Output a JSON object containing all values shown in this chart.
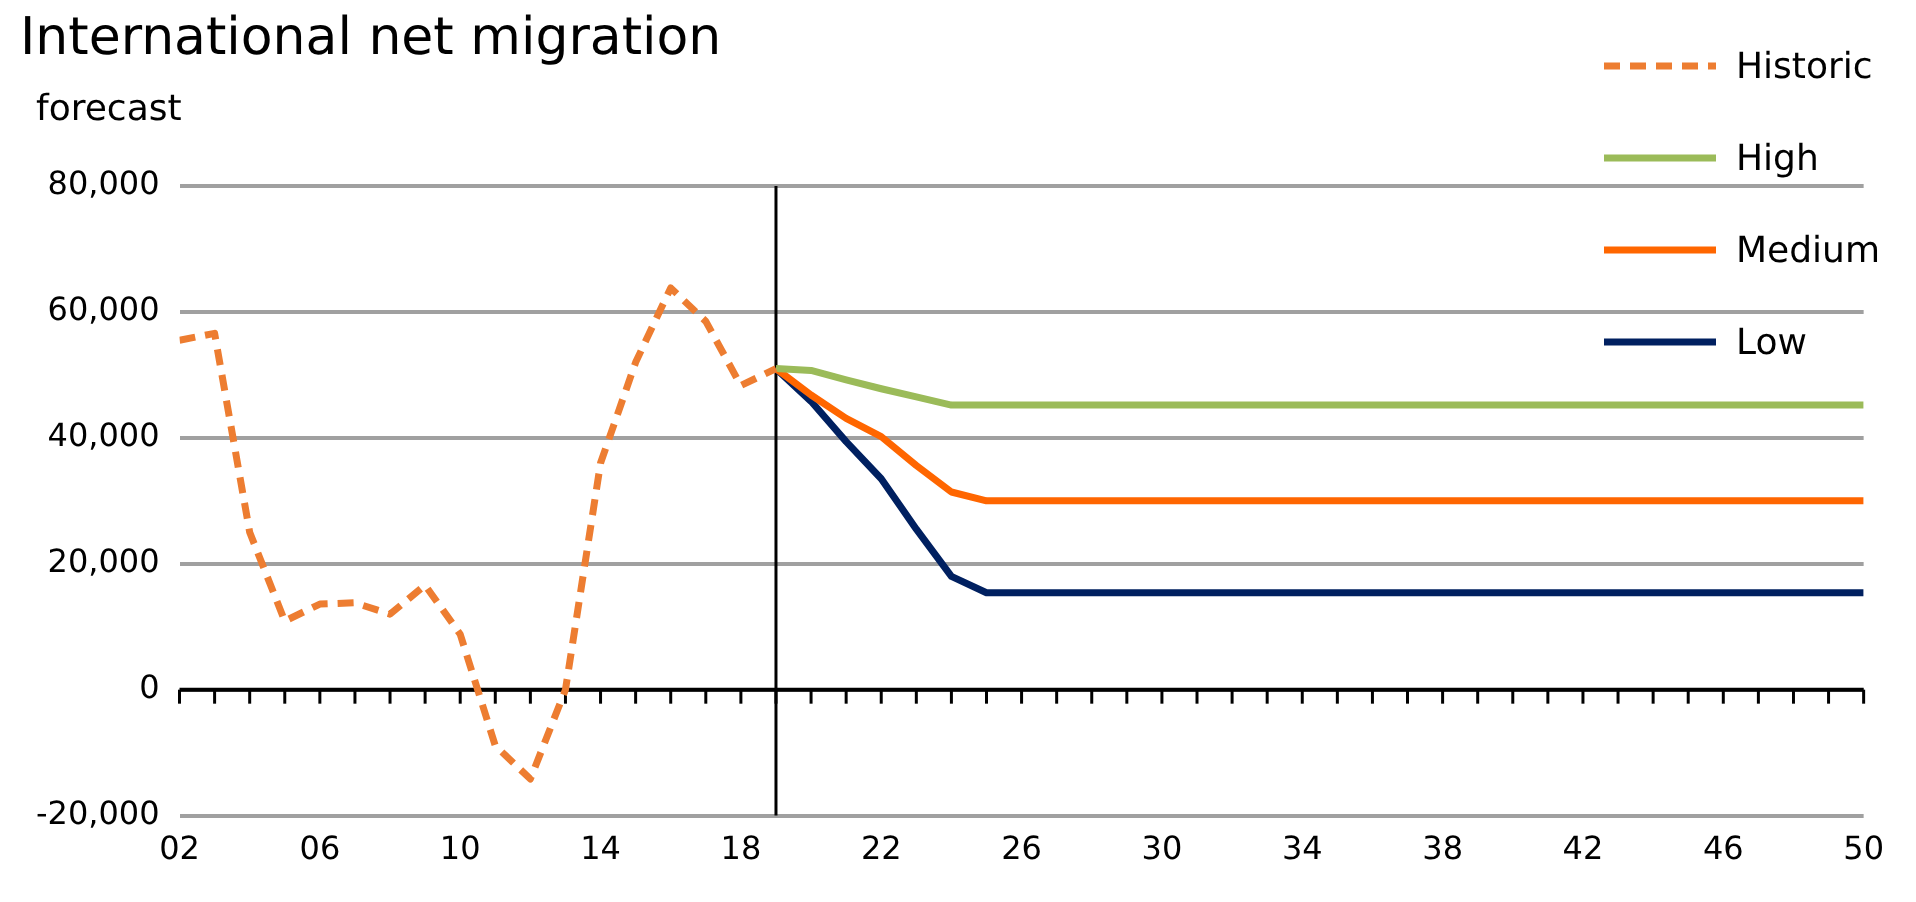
{
  "chart_data": {
    "type": "line",
    "title": "International net migration",
    "subtitle": "forecast",
    "xlim": [
      2002,
      2050
    ],
    "xticks": [
      {
        "value": 2002,
        "label": "02"
      },
      {
        "value": 2003,
        "label": null
      },
      {
        "value": 2004,
        "label": null
      },
      {
        "value": 2005,
        "label": null
      },
      {
        "value": 2006,
        "label": "06"
      },
      {
        "value": 2007,
        "label": null
      },
      {
        "value": 2008,
        "label": null
      },
      {
        "value": 2009,
        "label": null
      },
      {
        "value": 2010,
        "label": "10"
      },
      {
        "value": 2011,
        "label": null
      },
      {
        "value": 2012,
        "label": null
      },
      {
        "value": 2013,
        "label": null
      },
      {
        "value": 2014,
        "label": "14"
      },
      {
        "value": 2015,
        "label": null
      },
      {
        "value": 2016,
        "label": null
      },
      {
        "value": 2017,
        "label": null
      },
      {
        "value": 2018,
        "label": "18"
      },
      {
        "value": 2019,
        "label": null
      },
      {
        "value": 2020,
        "label": null
      },
      {
        "value": 2021,
        "label": null
      },
      {
        "value": 2022,
        "label": "22"
      },
      {
        "value": 2023,
        "label": null
      },
      {
        "value": 2024,
        "label": null
      },
      {
        "value": 2025,
        "label": null
      },
      {
        "value": 2026,
        "label": "26"
      },
      {
        "value": 2027,
        "label": null
      },
      {
        "value": 2028,
        "label": null
      },
      {
        "value": 2029,
        "label": null
      },
      {
        "value": 2030,
        "label": "30"
      },
      {
        "value": 2031,
        "label": null
      },
      {
        "value": 2032,
        "label": null
      },
      {
        "value": 2033,
        "label": null
      },
      {
        "value": 2034,
        "label": "34"
      },
      {
        "value": 2035,
        "label": null
      },
      {
        "value": 2036,
        "label": null
      },
      {
        "value": 2037,
        "label": null
      },
      {
        "value": 2038,
        "label": "38"
      },
      {
        "value": 2039,
        "label": null
      },
      {
        "value": 2040,
        "label": null
      },
      {
        "value": 2041,
        "label": null
      },
      {
        "value": 2042,
        "label": "42"
      },
      {
        "value": 2043,
        "label": null
      },
      {
        "value": 2044,
        "label": null
      },
      {
        "value": 2045,
        "label": null
      },
      {
        "value": 2046,
        "label": "46"
      },
      {
        "value": 2047,
        "label": null
      },
      {
        "value": 2048,
        "label": null
      },
      {
        "value": 2049,
        "label": null
      },
      {
        "value": 2050,
        "label": "50"
      }
    ],
    "ylim": [
      -20000,
      80000
    ],
    "yticks": [
      {
        "value": -20000,
        "label": "-20,000"
      },
      {
        "value": 0,
        "label": "0"
      },
      {
        "value": 20000,
        "label": "20,000"
      },
      {
        "value": 40000,
        "label": "40,000"
      },
      {
        "value": 60000,
        "label": "60,000"
      },
      {
        "value": 80000,
        "label": "80,000"
      }
    ],
    "grid": "y",
    "legend": "top right",
    "ref_lines": [
      {
        "axis": "x",
        "value": 2019,
        "color": "#000000"
      }
    ],
    "series": [
      {
        "name": "Historic",
        "color": "#ed7d31",
        "line_style": "dashed",
        "x": [
          2002,
          2003,
          2004,
          2005,
          2006,
          2007,
          2008,
          2009,
          2010,
          2011,
          2012,
          2013,
          2014,
          2015,
          2016,
          2017,
          2018,
          2019
        ],
        "values": [
          55500,
          56600,
          25000,
          10900,
          13600,
          13800,
          12000,
          16600,
          8800,
          -8900,
          -14200,
          0,
          36000,
          52000,
          63800,
          58500,
          48300,
          51000
        ]
      },
      {
        "name": "High",
        "color": "#9bbb59",
        "x": [
          2019,
          2020,
          2021,
          2022,
          2023,
          2024,
          2025,
          2026,
          2027,
          2028,
          2029,
          2030,
          2031,
          2032,
          2033,
          2034,
          2035,
          2036,
          2037,
          2038,
          2039,
          2040,
          2041,
          2042,
          2043,
          2044,
          2045,
          2046,
          2047,
          2048,
          2049,
          2050
        ],
        "values": [
          51000,
          50700,
          49200,
          47800,
          46500,
          45200,
          45200,
          45200,
          45200,
          45200,
          45200,
          45200,
          45200,
          45200,
          45200,
          45200,
          45200,
          45200,
          45200,
          45200,
          45200,
          45200,
          45200,
          45200,
          45200,
          45200,
          45200,
          45200,
          45200,
          45200,
          45200,
          45200
        ]
      },
      {
        "name": "Medium",
        "color": "#ff6600",
        "x": [
          2019,
          2020,
          2021,
          2022,
          2023,
          2024,
          2025,
          2026,
          2027,
          2028,
          2029,
          2030,
          2031,
          2032,
          2033,
          2034,
          2035,
          2036,
          2037,
          2038,
          2039,
          2040,
          2041,
          2042,
          2043,
          2044,
          2045,
          2046,
          2047,
          2048,
          2049,
          2050
        ],
        "values": [
          51000,
          46800,
          43100,
          40200,
          35600,
          31400,
          30000,
          30000,
          30000,
          30000,
          30000,
          30000,
          30000,
          30000,
          30000,
          30000,
          30000,
          30000,
          30000,
          30000,
          30000,
          30000,
          30000,
          30000,
          30000,
          30000,
          30000,
          30000,
          30000,
          30000,
          30000,
          30000
        ]
      },
      {
        "name": "Low",
        "color": "#002060",
        "x": [
          2019,
          2020,
          2021,
          2022,
          2023,
          2024,
          2025,
          2026,
          2027,
          2028,
          2029,
          2030,
          2031,
          2032,
          2033,
          2034,
          2035,
          2036,
          2037,
          2038,
          2039,
          2040,
          2041,
          2042,
          2043,
          2044,
          2045,
          2046,
          2047,
          2048,
          2049,
          2050
        ],
        "values": [
          51000,
          45800,
          39400,
          33500,
          25500,
          18000,
          15400,
          15400,
          15400,
          15400,
          15400,
          15400,
          15400,
          15400,
          15400,
          15400,
          15400,
          15400,
          15400,
          15400,
          15400,
          15400,
          15400,
          15400,
          15400,
          15400,
          15400,
          15400,
          15400,
          15400,
          15400,
          15400
        ]
      }
    ]
  }
}
